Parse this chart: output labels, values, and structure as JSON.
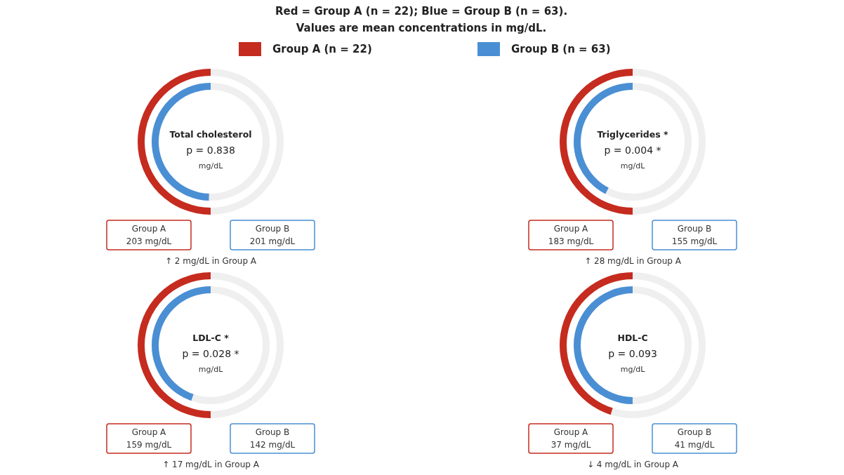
{
  "chart_data": [
    {
      "type": "other",
      "title": "Red = Group A (n = 22); Blue = Group B (n = 63).",
      "subtitle": "Values are mean concentrations in mg/dL.",
      "legend": "top",
      "series": [
        {
          "name": "Group A (n = 22)",
          "color": "#c62b1f"
        },
        {
          "name": "Group B (n = 63)",
          "color": "#4a8fd4"
        }
      ]
    },
    {
      "type": "other",
      "title": "Total cholesterol",
      "subtitle": "p = 0.838",
      "categories": [
        "Group A",
        "Group B"
      ],
      "values": [
        203,
        201
      ],
      "value_labels": [
        "203 mg/dL",
        "201 mg/dL"
      ],
      "annotations": [
        "mg/dL",
        "↑ 2 mg/dL in Group A"
      ]
    },
    {
      "type": "other",
      "title": "Triglycerides *",
      "subtitle": "p = 0.004 *",
      "categories": [
        "Group A",
        "Group B"
      ],
      "values": [
        183,
        155
      ],
      "value_labels": [
        "183 mg/dL",
        "155 mg/dL"
      ],
      "annotations": [
        "mg/dL",
        "↑ 28 mg/dL in Group A"
      ]
    },
    {
      "type": "other",
      "title": "LDL-C *",
      "subtitle": "p = 0.028 *",
      "categories": [
        "Group A",
        "Group B"
      ],
      "values": [
        159,
        142
      ],
      "value_labels": [
        "159 mg/dL",
        "142 mg/dL"
      ],
      "annotations": [
        "mg/dL",
        "↑ 17 mg/dL in Group A"
      ]
    },
    {
      "type": "other",
      "title": "HDL-C",
      "subtitle": "p = 0.093",
      "categories": [
        "Group A",
        "Group B"
      ],
      "values": [
        37,
        41
      ],
      "value_labels": [
        "37 mg/dL",
        "41 mg/dL"
      ],
      "annotations": [
        "mg/dL",
        "↓ 4 mg/dL in Group A"
      ]
    }
  ]
}
